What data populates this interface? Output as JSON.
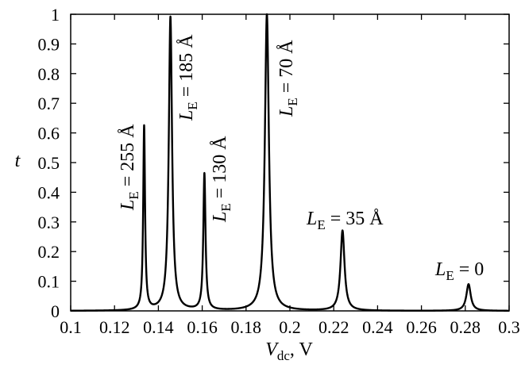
{
  "chart_data": {
    "type": "line",
    "xlabel": {
      "main": "V",
      "sub": "dc",
      "rest": ", V"
    },
    "ylabel": "t",
    "xlim": [
      0.1,
      0.3
    ],
    "ylim": [
      0,
      1
    ],
    "xticks": [
      0.1,
      0.12,
      0.14,
      0.16,
      0.18,
      0.2,
      0.22,
      0.24,
      0.26,
      0.28,
      0.3
    ],
    "xtick_labels": [
      "0.1",
      "0.12",
      "0.14",
      "0.16",
      "0.18",
      "0.2",
      "0.22",
      "0.24",
      "0.26",
      "0.28",
      "0.3"
    ],
    "yticks": [
      0,
      0.1,
      0.2,
      0.3,
      0.4,
      0.5,
      0.6,
      0.7,
      0.8,
      0.9,
      1
    ],
    "ytick_labels": [
      "0",
      "0.1",
      "0.2",
      "0.3",
      "0.4",
      "0.5",
      "0.6",
      "0.7",
      "0.8",
      "0.9",
      "1"
    ],
    "grid": false,
    "series": [
      {
        "peaks": [
          {
            "x": 0.1335,
            "height": 0.62,
            "width": 0.0005
          },
          {
            "x": 0.1455,
            "height": 0.99,
            "width": 0.0009
          },
          {
            "x": 0.161,
            "height": 0.46,
            "width": 0.0006
          },
          {
            "x": 0.1895,
            "height": 1.0,
            "width": 0.0011
          },
          {
            "x": 0.224,
            "height": 0.27,
            "width": 0.0011
          },
          {
            "x": 0.2815,
            "height": 0.09,
            "width": 0.0012
          }
        ]
      }
    ],
    "annotations": [
      {
        "text_main": "L",
        "text_sub": "E",
        "text_rest": " = 255 Å"
      },
      {
        "text_main": "L",
        "text_sub": "E",
        "text_rest": " = 185 Å"
      },
      {
        "text_main": "L",
        "text_sub": "E",
        "text_rest": " = 130 Å"
      },
      {
        "text_main": "L",
        "text_sub": "E",
        "text_rest": " = 70 Å"
      },
      {
        "text_main": "L",
        "text_sub": "E",
        "text_rest": " = 35 Å"
      },
      {
        "text_main": "L",
        "text_sub": "E",
        "text_rest": " = 0"
      }
    ]
  }
}
